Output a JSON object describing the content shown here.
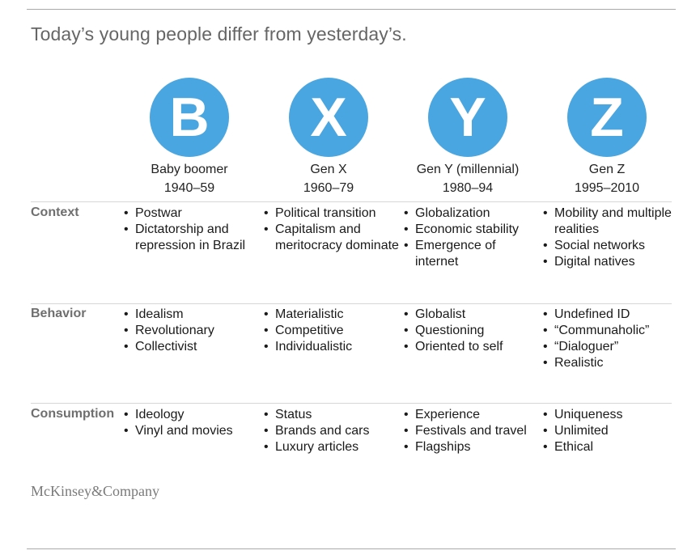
{
  "title": "Today’s young people differ from yesterday’s.",
  "generations": [
    {
      "letter": "B",
      "name": "Baby boomer",
      "years": "1940–59"
    },
    {
      "letter": "X",
      "name": "Gen X",
      "years": "1960–79"
    },
    {
      "letter": "Y",
      "name": "Gen Y (millennial)",
      "years": "1980–94"
    },
    {
      "letter": "Z",
      "name": "Gen Z",
      "years": "1995–2010"
    }
  ],
  "rows": [
    {
      "label": "Context",
      "cells": [
        [
          "Postwar",
          "Dictatorship and repression in Brazil"
        ],
        [
          "Political transition",
          "Capitalism and meritocracy dominate"
        ],
        [
          "Globalization",
          "Economic stability",
          "Emergence of internet"
        ],
        [
          "Mobility and multiple realities",
          "Social networks",
          "Digital natives"
        ]
      ]
    },
    {
      "label": "Behavior",
      "cells": [
        [
          "Idealism",
          "Revolutionary",
          "Collectivist"
        ],
        [
          "Materialistic",
          "Competitive",
          "Individualistic"
        ],
        [
          "Globalist",
          "Questioning",
          "Oriented to self"
        ],
        [
          "Undefined ID",
          "“Communaholic”",
          "“Dialoguer”",
          "Realistic"
        ]
      ]
    },
    {
      "label": "Consumption",
      "cells": [
        [
          "Ideology",
          "Vinyl and movies"
        ],
        [
          "Status",
          "Brands and cars",
          "Luxury articles"
        ],
        [
          "Experience",
          "Festivals and travel",
          "Flagships"
        ],
        [
          "Uniqueness",
          "Unlimited",
          "Ethical"
        ]
      ]
    }
  ],
  "source": "McKinsey&Company",
  "colors": {
    "circle": "#4aa6e0"
  }
}
